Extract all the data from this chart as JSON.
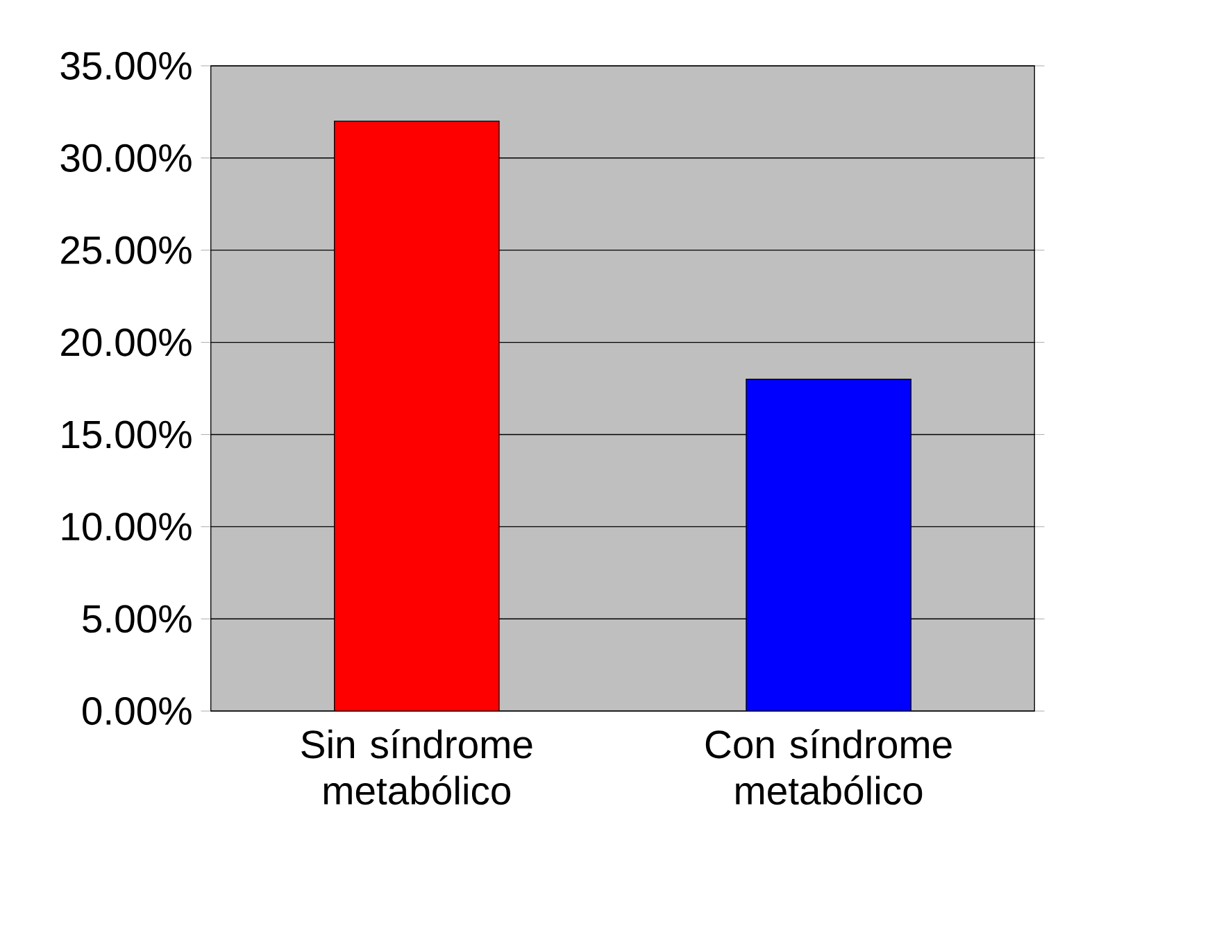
{
  "chart_data": {
    "type": "bar",
    "categories": [
      "Sin síndrome metabólico",
      "Con síndrome metabólico"
    ],
    "values": [
      32,
      18
    ],
    "colors": [
      "#ff0000",
      "#0000ff"
    ],
    "ylim": [
      0,
      35
    ],
    "yticks": [
      {
        "value": 0,
        "label": "0.00%"
      },
      {
        "value": 5,
        "label": "5.00%"
      },
      {
        "value": 10,
        "label": "10.00%"
      },
      {
        "value": 15,
        "label": "15.00%"
      },
      {
        "value": 20,
        "label": "20.00%"
      },
      {
        "value": 25,
        "label": "25.00%"
      },
      {
        "value": 30,
        "label": "30.00%"
      },
      {
        "value": 35,
        "label": "35.00%"
      }
    ],
    "grid": "y"
  }
}
